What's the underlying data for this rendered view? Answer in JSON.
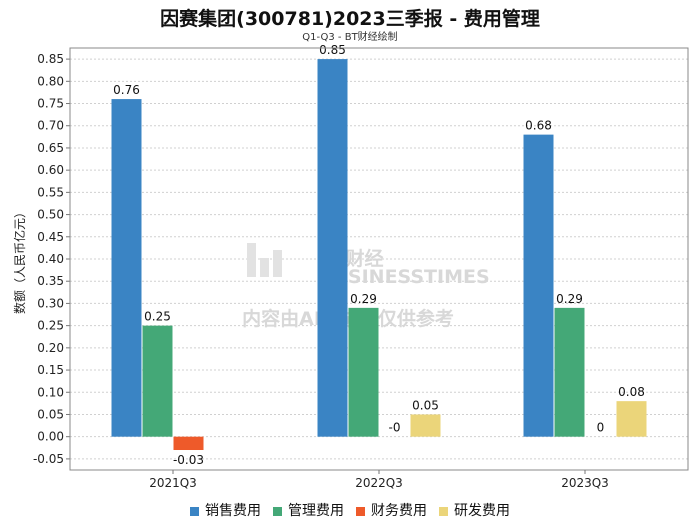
{
  "title": "因赛集团(300781)2023三季报 - 费用管理",
  "subtitle": "Q1-Q3 - BT财经绘制",
  "watermark": {
    "brand": "BT财经",
    "brand_en": "BUSINESSTIMES",
    "note": "内容由AI生成，仅供参考"
  },
  "chart_data": {
    "type": "bar",
    "ylabel": "数额（人民币亿元）",
    "xlabel": "",
    "ylim": [
      -0.075,
      0.875
    ],
    "yticks": [
      -0.05,
      0.0,
      0.05,
      0.1,
      0.15,
      0.2,
      0.25,
      0.3,
      0.35,
      0.4,
      0.45,
      0.5,
      0.55,
      0.6,
      0.65,
      0.7,
      0.75,
      0.8,
      0.85
    ],
    "grid": true,
    "legend_position": "bottom",
    "categories": [
      "2021Q3",
      "2022Q3",
      "2023Q3"
    ],
    "series": [
      {
        "name": "销售费用",
        "color": "#3a84c4",
        "values": [
          0.76,
          0.85,
          0.68
        ],
        "labels": [
          "0.76",
          "0.85",
          "0.68"
        ]
      },
      {
        "name": "管理费用",
        "color": "#44a877",
        "values": [
          0.25,
          0.29,
          0.29
        ],
        "labels": [
          "0.25",
          "0.29",
          "0.29"
        ]
      },
      {
        "name": "财务费用",
        "color": "#ee5a2a",
        "values": [
          -0.03,
          -0.001,
          0.0
        ],
        "labels": [
          "-0.03",
          "-0",
          "0"
        ]
      },
      {
        "name": "研发费用",
        "color": "#ebd57a",
        "values": [
          null,
          0.05,
          0.08
        ],
        "labels": [
          "",
          "0.05",
          "0.08"
        ]
      }
    ]
  }
}
